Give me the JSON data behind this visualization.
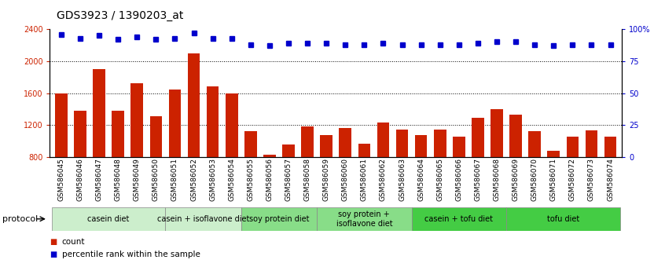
{
  "title": "GDS3923 / 1390203_at",
  "samples": [
    "GSM586045",
    "GSM586046",
    "GSM586047",
    "GSM586048",
    "GSM586049",
    "GSM586050",
    "GSM586051",
    "GSM586052",
    "GSM586053",
    "GSM586054",
    "GSM586055",
    "GSM586056",
    "GSM586057",
    "GSM586058",
    "GSM586059",
    "GSM586060",
    "GSM586061",
    "GSM586062",
    "GSM586063",
    "GSM586064",
    "GSM586065",
    "GSM586066",
    "GSM586067",
    "GSM586068",
    "GSM586069",
    "GSM586070",
    "GSM586071",
    "GSM586072",
    "GSM586073",
    "GSM586074"
  ],
  "counts": [
    1600,
    1380,
    1900,
    1380,
    1720,
    1310,
    1650,
    2100,
    1680,
    1600,
    1120,
    830,
    960,
    1180,
    1080,
    1160,
    970,
    1230,
    1140,
    1080,
    1140,
    1060,
    1290,
    1400,
    1330,
    1120,
    880,
    1060,
    1130,
    1060
  ],
  "percentiles": [
    96,
    93,
    95,
    92,
    94,
    92,
    93,
    97,
    93,
    93,
    88,
    87,
    89,
    89,
    89,
    88,
    88,
    89,
    88,
    88,
    88,
    88,
    89,
    90,
    90,
    88,
    87,
    88,
    88,
    88
  ],
  "bar_color": "#cc2200",
  "dot_color": "#0000cc",
  "ylim_left": [
    800,
    2400
  ],
  "ylim_right": [
    0,
    100
  ],
  "yticks_left": [
    800,
    1200,
    1600,
    2000,
    2400
  ],
  "yticks_right": [
    0,
    25,
    50,
    75,
    100
  ],
  "ytick_labels_right": [
    "0",
    "25",
    "50",
    "75",
    "100%"
  ],
  "grid_values": [
    1200,
    1600,
    2000
  ],
  "protocols": [
    {
      "label": "casein diet",
      "start": 0,
      "end": 6,
      "color": "#cceecc"
    },
    {
      "label": "casein + isoflavone diet",
      "start": 6,
      "end": 10,
      "color": "#cceecc"
    },
    {
      "label": "soy protein diet",
      "start": 10,
      "end": 14,
      "color": "#88dd88"
    },
    {
      "label": "soy protein +\nisoflavone diet",
      "start": 14,
      "end": 19,
      "color": "#88dd88"
    },
    {
      "label": "casein + tofu diet",
      "start": 19,
      "end": 24,
      "color": "#44cc44"
    },
    {
      "label": "tofu diet",
      "start": 24,
      "end": 30,
      "color": "#44cc44"
    }
  ],
  "protocol_label": "protocol",
  "legend_count_color": "#cc2200",
  "legend_dot_color": "#0000cc",
  "title_fontsize": 10,
  "tick_fontsize": 7,
  "label_fontsize": 6.5,
  "proto_fontsize": 7
}
